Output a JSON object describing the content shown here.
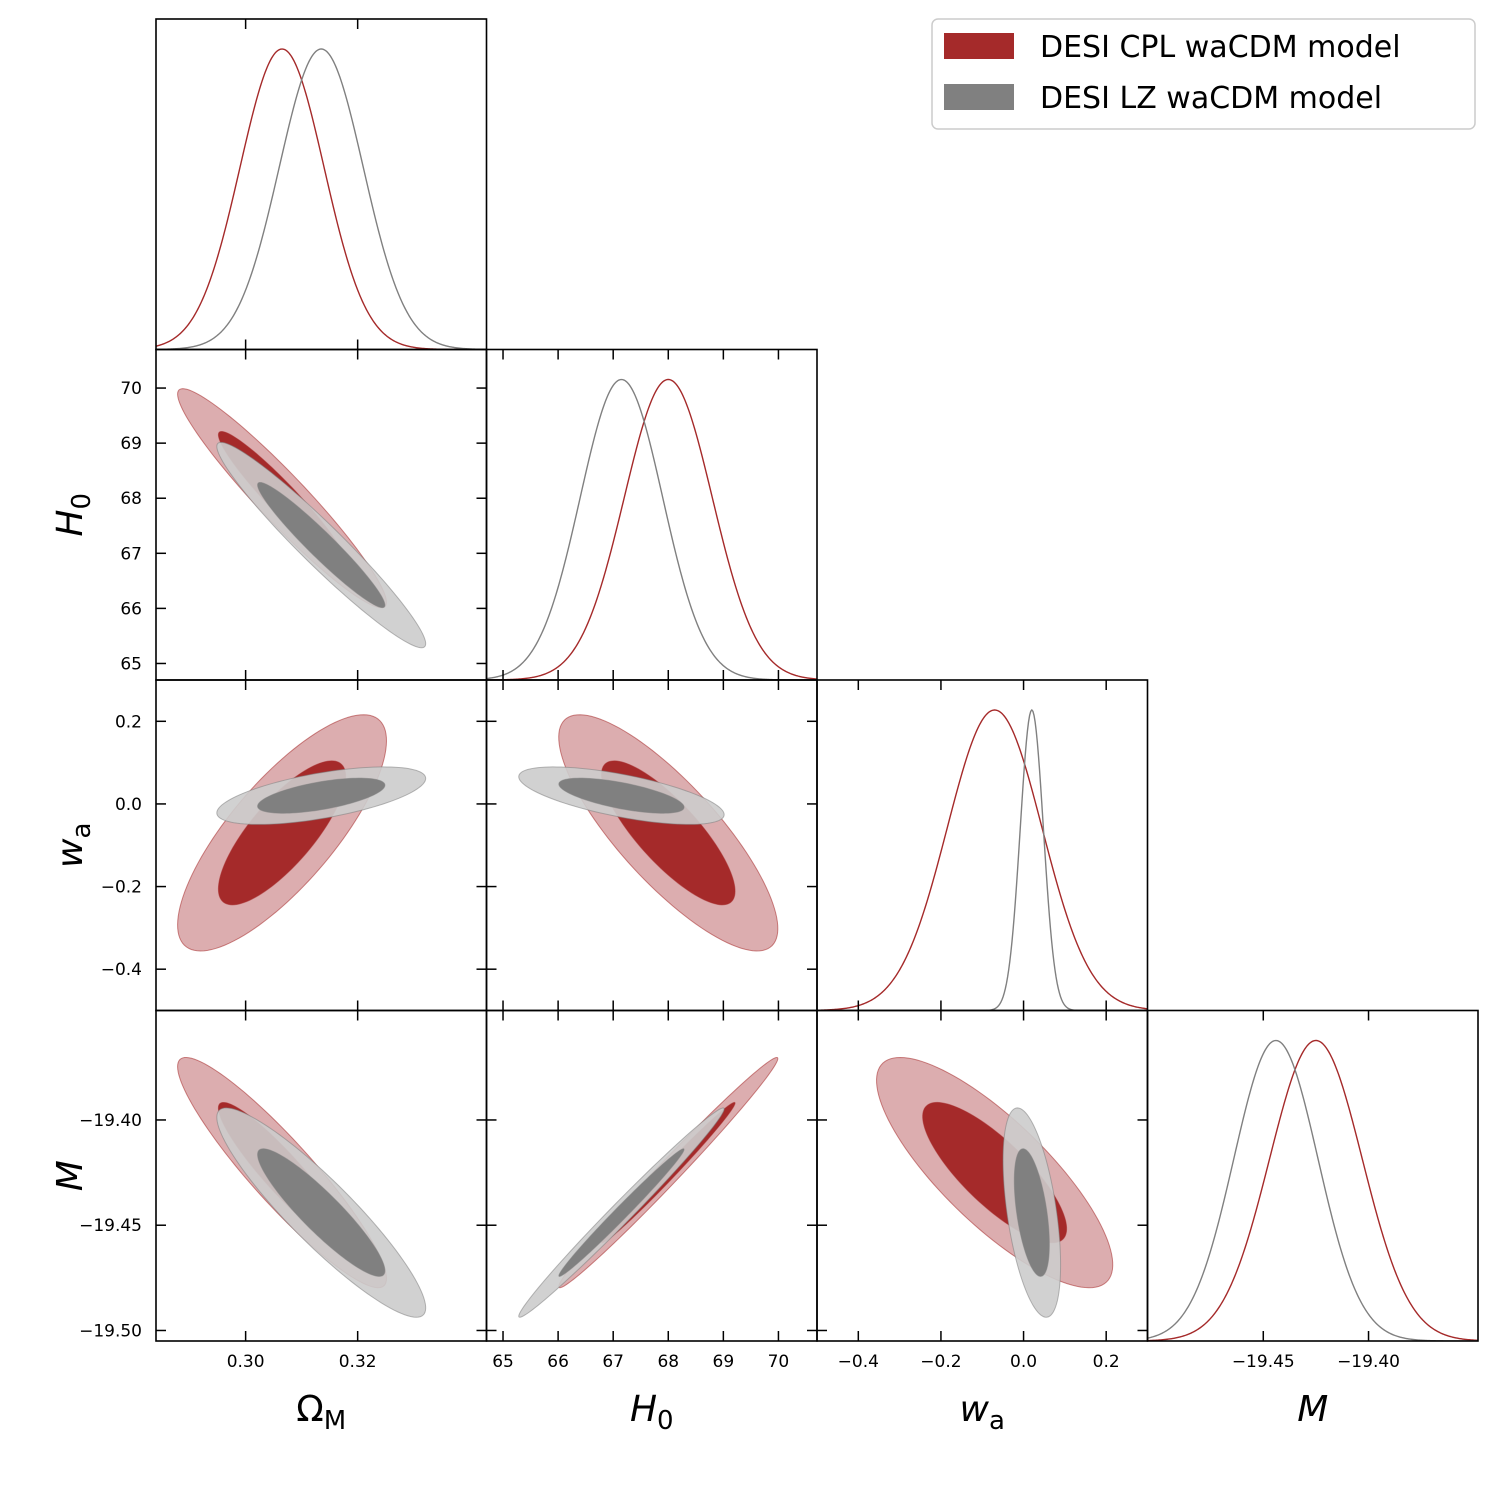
{
  "colors": {
    "cpl_line": "#a52a2a",
    "cpl_inner": "#a52a2a",
    "cpl_outer": "#d8a4a6",
    "lz_line": "#808080",
    "lz_inner": "#808080",
    "lz_outer": "#cccccc"
  },
  "legend": {
    "location": "top-right",
    "entries": [
      "DESI CPL waCDM model",
      "DESI LZ waCDM model"
    ]
  },
  "chart_data": {
    "type": "triangle-plot",
    "parameters": [
      {
        "id": "om",
        "label": "Ω",
        "sub": "M",
        "range": [
          0.284,
          0.343
        ],
        "ticks": [
          0.3,
          0.32
        ],
        "tick_labels": [
          "0.30",
          "0.32"
        ]
      },
      {
        "id": "h0",
        "label": "H",
        "sub": "0",
        "range": [
          64.7,
          70.7
        ],
        "ticks": [
          65,
          66,
          67,
          68,
          69,
          70
        ],
        "tick_labels": [
          "65",
          "66",
          "67",
          "68",
          "69",
          "70"
        ]
      },
      {
        "id": "wa",
        "label": "w",
        "sub": "a",
        "range": [
          -0.5,
          0.3
        ],
        "ticks": [
          -0.4,
          -0.2,
          0.0,
          0.2
        ],
        "tick_labels": [
          "−0.4",
          "−0.2",
          "0.0",
          "0.2"
        ]
      },
      {
        "id": "m",
        "label": "M",
        "sub": "",
        "range": [
          -19.505,
          -19.348
        ],
        "ticks": [
          -19.5,
          -19.45,
          -19.4
        ],
        "tick_labels": [
          "−19.50",
          "−19.45",
          "−19.40"
        ]
      }
    ],
    "diag_ticks": {
      "m": {
        "ticks": [
          -19.45,
          -19.4
        ],
        "tick_labels": [
          "−19.45",
          "−19.40"
        ]
      }
    },
    "series": [
      {
        "name": "DESI CPL waCDM model",
        "mean": {
          "om": 0.3065,
          "h0": 68.0,
          "wa": -0.07,
          "m": -19.425
        },
        "sigma": {
          "om": 0.0075,
          "h0": 0.8,
          "wa": 0.115,
          "m": 0.022
        },
        "corr": {
          "om_h0": -0.95,
          "om_wa": 0.78,
          "h0_wa": -0.81,
          "om_m": -0.92,
          "h0_m": 0.99,
          "wa_m": -0.8
        }
      },
      {
        "name": "DESI LZ waCDM model",
        "mean": {
          "om": 0.3135,
          "h0": 67.15,
          "wa": 0.02,
          "m": -19.444
        },
        "sigma": {
          "om": 0.0075,
          "h0": 0.75,
          "wa": 0.028,
          "m": 0.02
        },
        "corr": {
          "om_h0": -0.96,
          "om_wa": 0.6,
          "h0_wa": -0.66,
          "om_m": -0.91,
          "h0_m": 0.99,
          "wa_m": -0.5
        }
      }
    ]
  }
}
